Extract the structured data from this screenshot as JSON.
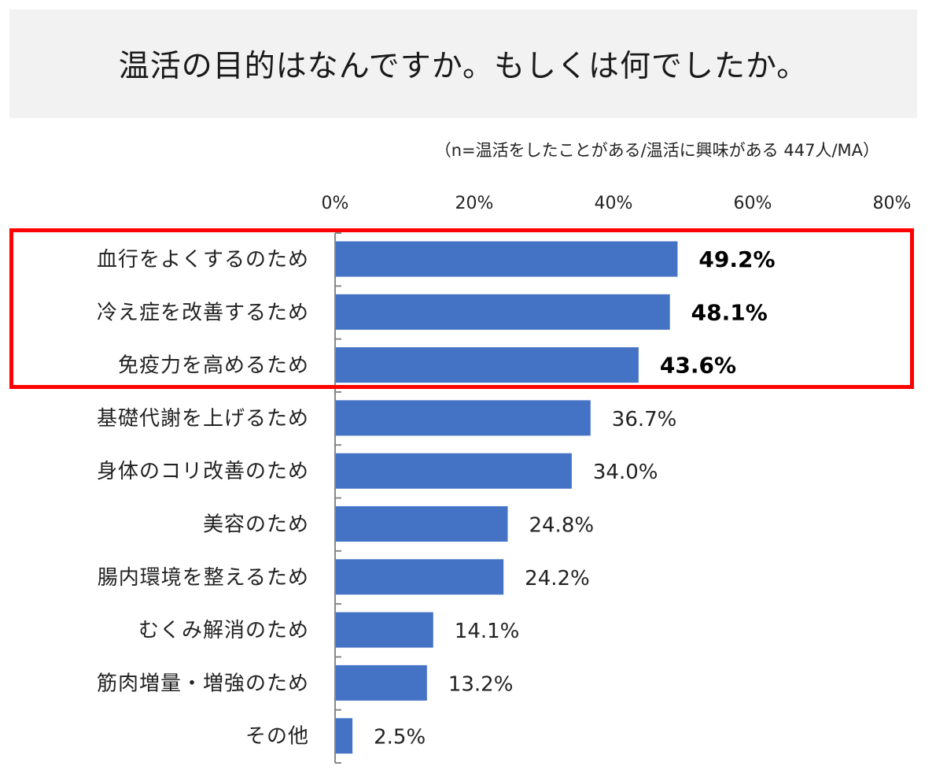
{
  "title": "温活の目的はなんですか。もしくは何でしたか。",
  "subtitle": "（n=温活をしたことがある/温活に興味がある 447人/MA）",
  "colors": {
    "bar": "#4472c4",
    "highlight": "#ff0000",
    "title_bg": "#f2f2f2"
  },
  "chart_data": {
    "type": "bar",
    "orientation": "horizontal",
    "title": "温活の目的はなんですか。もしくは何でしたか。",
    "subtitle": "（n=温活をしたことがある/温活に興味がある 447人/MA）",
    "categories": [
      "血行をよくするのため",
      "冷え症を改善するため",
      "免疫力を高めるため",
      "基礎代謝を上げるため",
      "身体のコリ改善のため",
      "美容のため",
      "腸内環境を整えるため",
      "むくみ解消のため",
      "筋肉増量・増強のため",
      "その他"
    ],
    "values": [
      49.2,
      48.1,
      43.6,
      36.7,
      34.0,
      24.8,
      24.2,
      14.1,
      13.2,
      2.5
    ],
    "value_labels": [
      "49.2%",
      "48.1%",
      "43.6%",
      "36.7%",
      "34.0%",
      "24.8%",
      "24.2%",
      "14.1%",
      "13.2%",
      "2.5%"
    ],
    "highlighted_count": 3,
    "xlim": [
      0,
      80
    ],
    "xticks": [
      0,
      20,
      40,
      60,
      80
    ],
    "xtick_labels": [
      "0%",
      "20%",
      "40%",
      "60%",
      "80%"
    ],
    "xaxis_position": "top",
    "grid": false,
    "legend": "none"
  }
}
